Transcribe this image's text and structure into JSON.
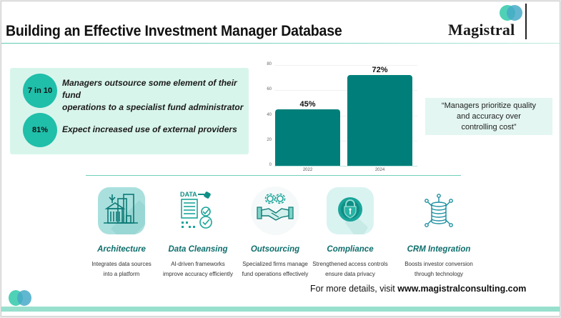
{
  "header": {
    "title": "Building an Effective Investment Manager Database",
    "logo_text": "Magistral"
  },
  "stats": [
    {
      "value": "7 in 10",
      "text_line1": "Managers outsource some element of their fund",
      "text_line2": "operations to a specialist fund administrator"
    },
    {
      "value": "81%",
      "text_line1": "Expect increased use of external providers",
      "text_line2": ""
    }
  ],
  "chart_data": {
    "type": "bar",
    "title": "",
    "xlabel": "",
    "ylabel": "",
    "categories": [
      "2022",
      "2024"
    ],
    "values": [
      45,
      72
    ],
    "data_labels": [
      "45%",
      "72%"
    ],
    "yticks": [
      "80",
      "60",
      "40",
      "20",
      "0"
    ],
    "ylim": [
      0,
      80
    ],
    "grid": true,
    "bar_color": "#007f7a"
  },
  "quote": {
    "line1": "“Managers prioritize quality",
    "line2": "and accuracy over",
    "line3": "controlling cost”"
  },
  "features": [
    {
      "icon": "architecture-buildings-icon",
      "name": "Architecture",
      "desc1": "Integrates data sources",
      "desc2": "into a platform"
    },
    {
      "icon": "data-cleansing-icon",
      "name": "Data Cleansing",
      "desc1": "AI-driven frameworks",
      "desc2": "improve accuracy efficiently"
    },
    {
      "icon": "handshake-gears-icon",
      "name": "Outsourcing",
      "desc1": "Specialized firms manage",
      "desc2": "fund operations effectively"
    },
    {
      "icon": "padlock-shield-icon",
      "name": "Compliance",
      "desc1": "Strengthened access controls",
      "desc2": "ensure data privacy"
    },
    {
      "icon": "database-network-icon",
      "name": "CRM Integration",
      "desc1": "Boosts investor conversion",
      "desc2": "through technology"
    }
  ],
  "footer": {
    "prefix": "For more details, visit ",
    "url": "www.magistralconsulting.com"
  },
  "colors": {
    "accent": "#1fbfaa",
    "bar": "#007f7a",
    "heading": "#0e6e6c",
    "panel": "#d8f5ec",
    "band": "#97e0cd"
  }
}
